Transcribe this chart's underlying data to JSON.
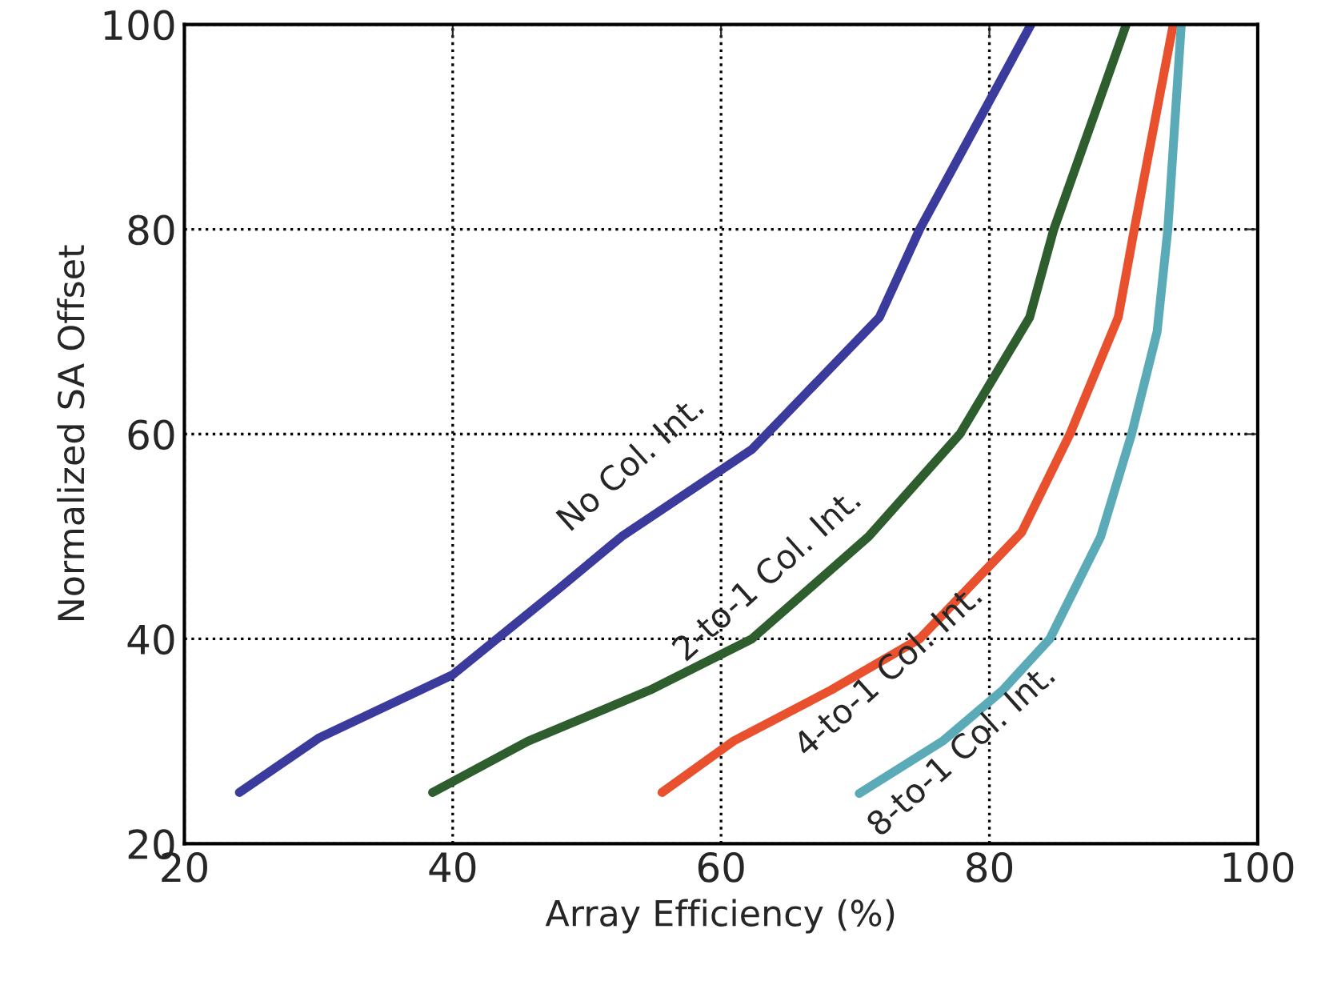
{
  "chart_data": {
    "type": "line",
    "xlabel": "Array Efficiency (%)",
    "ylabel": "Normalized SA Offset",
    "xlim": [
      20,
      100
    ],
    "ylim": [
      20,
      100
    ],
    "xticks": [
      20,
      40,
      60,
      80,
      100
    ],
    "yticks": [
      20,
      40,
      60,
      80,
      100
    ],
    "grid": true,
    "line_style": "solid",
    "series": [
      {
        "name": "No Col. Int.",
        "color": "#3b3b9e",
        "x": [
          24.1,
          30,
          40,
          48,
          52.6,
          62.3,
          71.8,
          74.8,
          83.1
        ],
        "values": [
          25,
          30.3,
          36.5,
          45,
          50,
          58.5,
          71.4,
          80,
          100
        ]
      },
      {
        "name": "2-to-1 Col. Int.",
        "color": "#2e5e2e",
        "x": [
          38.5,
          45.6,
          54.7,
          62.3,
          71,
          77.8,
          83,
          84.8,
          90.2
        ],
        "values": [
          25,
          30,
          35,
          40,
          50,
          60,
          71.4,
          80,
          100
        ]
      },
      {
        "name": "4-to-1 Col. Int.",
        "color": "#e8502e",
        "x": [
          55.6,
          60.9,
          68.2,
          74.8,
          82.4,
          86,
          89.6,
          90.8,
          93.7
        ],
        "values": [
          25,
          30,
          35,
          40,
          50.4,
          60,
          71.4,
          80,
          100
        ]
      },
      {
        "name": "8-to-1 Col. Int.",
        "color": "#5aaab8",
        "x": [
          70.3,
          76.5,
          81,
          84.5,
          88.3,
          90.6,
          92.5,
          93.3,
          94.3
        ],
        "values": [
          24.9,
          30,
          35,
          40,
          50,
          60,
          70,
          80,
          100
        ]
      }
    ]
  }
}
